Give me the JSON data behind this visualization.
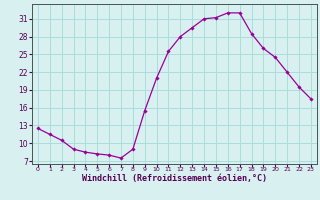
{
  "hours": [
    0,
    1,
    2,
    3,
    4,
    5,
    6,
    7,
    8,
    9,
    10,
    11,
    12,
    13,
    14,
    15,
    16,
    17,
    18,
    19,
    20,
    21,
    22,
    23
  ],
  "values": [
    12.5,
    11.5,
    10.5,
    9.0,
    8.5,
    8.2,
    8.0,
    7.5,
    9.0,
    15.5,
    21.0,
    25.5,
    28.0,
    29.5,
    31.0,
    31.2,
    32.0,
    32.0,
    28.5,
    26.0,
    24.5,
    22.0,
    19.5,
    17.5
  ],
  "line_color": "#990099",
  "marker": "D",
  "marker_size": 1.8,
  "bg_color": "#d8f0f0",
  "grid_color": "#aadddd",
  "xlabel": "Windchill (Refroidissement éolien,°C)",
  "xlabel_fontsize": 6.0,
  "yticks": [
    7,
    10,
    13,
    16,
    19,
    22,
    25,
    28,
    31
  ],
  "xticks": [
    0,
    1,
    2,
    3,
    4,
    5,
    6,
    7,
    8,
    9,
    10,
    11,
    12,
    13,
    14,
    15,
    16,
    17,
    18,
    19,
    20,
    21,
    22,
    23
  ],
  "ylim": [
    6.5,
    33.5
  ],
  "xlim": [
    -0.5,
    23.5
  ],
  "tick_color": "#550055",
  "label_color": "#550055"
}
